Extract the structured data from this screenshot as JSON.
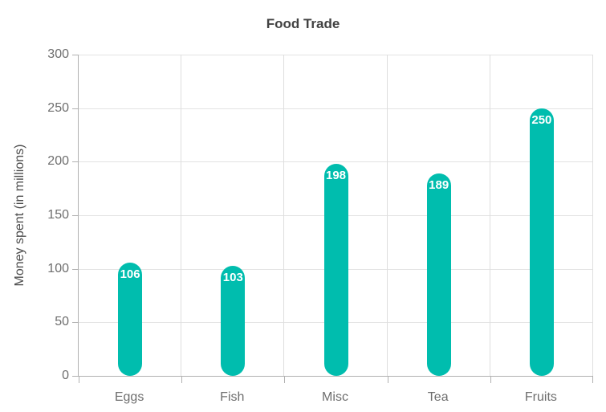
{
  "chart_data": {
    "type": "bar",
    "title": "Food Trade",
    "categories": [
      "Eggs",
      "Fish",
      "Misc",
      "Tea",
      "Fruits"
    ],
    "values": [
      106,
      103,
      198,
      189,
      250
    ],
    "xlabel": "",
    "ylabel": "Money spent (in millions)",
    "ylim": [
      0,
      300
    ],
    "yticks": [
      0,
      50,
      100,
      150,
      200,
      250,
      300
    ],
    "grid": true,
    "legend": "none",
    "value_labels_shown": true
  },
  "colors": {
    "bar": "#00bdae",
    "value_label": "#ffffff",
    "title": "#424242",
    "axis_label": "#6e6e6e",
    "axis_line": "#b1b1b1",
    "gridline": "#e3e3e3",
    "background": "#ffffff"
  }
}
